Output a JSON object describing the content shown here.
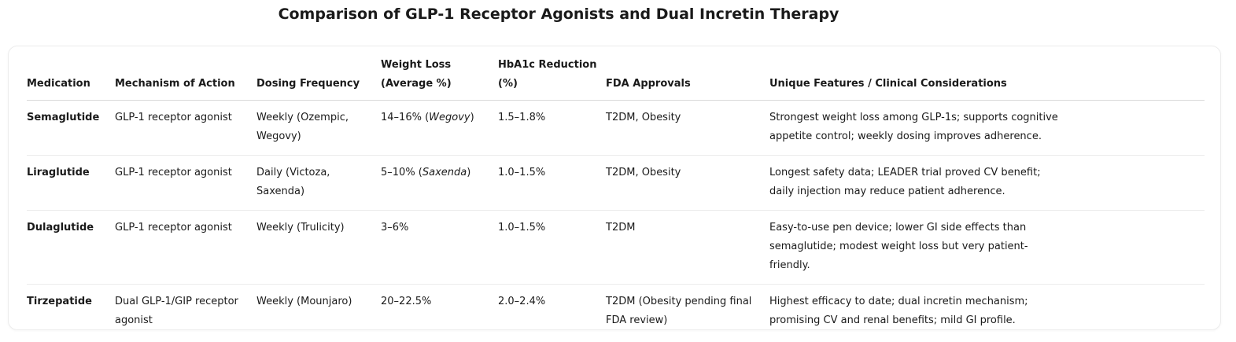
{
  "title": "Comparison of GLP-1 Receptor Agonists and Dual Incretin Therapy",
  "table": {
    "headers": [
      "Medication",
      "Mechanism of Action",
      "Dosing Frequency",
      "Weight Loss (Average %)",
      "HbA1c Reduction (%)",
      "FDA Approvals",
      "Unique Features / Clinical Considerations"
    ],
    "rows": [
      [
        "Semaglutide",
        "GLP-1 receptor agonist",
        "Weekly (Ozempic, Wegovy)",
        [
          "14–16% (",
          "Wegovy",
          ")"
        ],
        "1.5–1.8%",
        "T2DM, Obesity",
        "Strongest weight loss among GLP-1s; supports cognitive appetite control; weekly dosing improves adherence."
      ],
      [
        "Liraglutide",
        "GLP-1 receptor agonist",
        "Daily (Victoza, Saxenda)",
        [
          "5–10% (",
          "Saxenda",
          ")"
        ],
        "1.0–1.5%",
        "T2DM, Obesity",
        "Longest safety data; LEADER trial proved CV benefit; daily injection may reduce patient adherence."
      ],
      [
        "Dulaglutide",
        "GLP-1 receptor agonist",
        "Weekly (Trulicity)",
        "3–6%",
        "1.0–1.5%",
        "T2DM",
        "Easy-to-use pen device; lower GI side effects than semaglutide; modest weight loss but very patient-friendly."
      ],
      [
        "Tirzepatide",
        "Dual GLP-1/GIP receptor agonist",
        "Weekly (Mounjaro)",
        "20–22.5%",
        "2.0–2.4%",
        "T2DM (Obesity pending final FDA review)",
        "Highest efficacy to date; dual incretin mechanism; promising CV and renal benefits; mild GI profile."
      ]
    ]
  }
}
